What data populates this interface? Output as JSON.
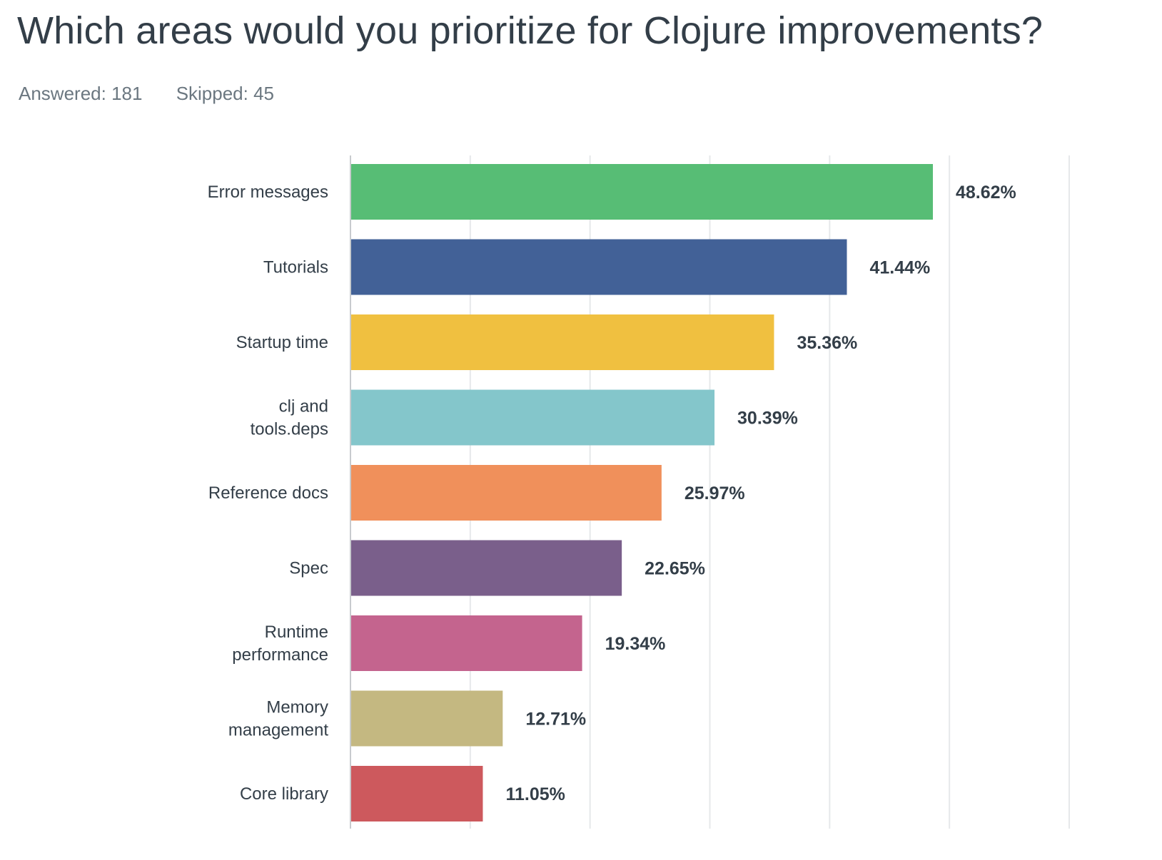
{
  "title": "Which areas would you prioritize for Clojure improvements?",
  "stats": {
    "answered_label": "Answered: 181",
    "skipped_label": "Skipped: 45"
  },
  "chart_data": {
    "type": "bar",
    "orientation": "horizontal",
    "title": "Which areas would you prioritize for Clojure improvements?",
    "xlabel": "",
    "ylabel": "",
    "xlim": [
      0,
      60
    ],
    "grid": true,
    "value_format": "percent",
    "categories": [
      [
        "Error messages"
      ],
      [
        "Tutorials"
      ],
      [
        "Startup time"
      ],
      [
        "clj and",
        "tools.deps"
      ],
      [
        "Reference docs"
      ],
      [
        "Spec"
      ],
      [
        "Runtime",
        "performance"
      ],
      [
        "Memory",
        "management"
      ],
      [
        "Core library"
      ]
    ],
    "values": [
      48.62,
      41.44,
      35.36,
      30.39,
      25.97,
      22.65,
      19.34,
      12.71,
      11.05
    ],
    "value_labels": [
      "48.62%",
      "41.44%",
      "35.36%",
      "30.39%",
      "25.97%",
      "22.65%",
      "19.34%",
      "12.71%",
      "11.05%"
    ],
    "colors": [
      "#57bd75",
      "#426197",
      "#f0c040",
      "#84c6cb",
      "#f0905b",
      "#7a5f8b",
      "#c4648e",
      "#c4b881",
      "#cd595d"
    ],
    "grid_color": "#e6e8ea",
    "axis_color": "#c8cbce"
  }
}
